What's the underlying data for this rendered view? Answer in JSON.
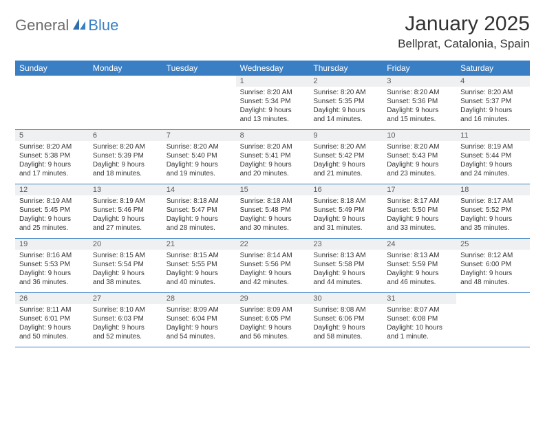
{
  "brand": {
    "part1": "General",
    "part2": "Blue"
  },
  "title": "January 2025",
  "location": "Bellprat, Catalonia, Spain",
  "colors": {
    "header_bg": "#3a7fc4",
    "header_text": "#ffffff",
    "daynum_bg": "#eef0f2",
    "rule": "#3a7fc4",
    "body_text": "#333333",
    "logo_gray": "#6b6b6b",
    "logo_blue": "#3a7fc4",
    "page_bg": "#ffffff"
  },
  "day_headers": [
    "Sunday",
    "Monday",
    "Tuesday",
    "Wednesday",
    "Thursday",
    "Friday",
    "Saturday"
  ],
  "weeks": [
    [
      null,
      null,
      null,
      {
        "n": "1",
        "sr": "Sunrise: 8:20 AM",
        "ss": "Sunset: 5:34 PM",
        "d1": "Daylight: 9 hours",
        "d2": "and 13 minutes."
      },
      {
        "n": "2",
        "sr": "Sunrise: 8:20 AM",
        "ss": "Sunset: 5:35 PM",
        "d1": "Daylight: 9 hours",
        "d2": "and 14 minutes."
      },
      {
        "n": "3",
        "sr": "Sunrise: 8:20 AM",
        "ss": "Sunset: 5:36 PM",
        "d1": "Daylight: 9 hours",
        "d2": "and 15 minutes."
      },
      {
        "n": "4",
        "sr": "Sunrise: 8:20 AM",
        "ss": "Sunset: 5:37 PM",
        "d1": "Daylight: 9 hours",
        "d2": "and 16 minutes."
      }
    ],
    [
      {
        "n": "5",
        "sr": "Sunrise: 8:20 AM",
        "ss": "Sunset: 5:38 PM",
        "d1": "Daylight: 9 hours",
        "d2": "and 17 minutes."
      },
      {
        "n": "6",
        "sr": "Sunrise: 8:20 AM",
        "ss": "Sunset: 5:39 PM",
        "d1": "Daylight: 9 hours",
        "d2": "and 18 minutes."
      },
      {
        "n": "7",
        "sr": "Sunrise: 8:20 AM",
        "ss": "Sunset: 5:40 PM",
        "d1": "Daylight: 9 hours",
        "d2": "and 19 minutes."
      },
      {
        "n": "8",
        "sr": "Sunrise: 8:20 AM",
        "ss": "Sunset: 5:41 PM",
        "d1": "Daylight: 9 hours",
        "d2": "and 20 minutes."
      },
      {
        "n": "9",
        "sr": "Sunrise: 8:20 AM",
        "ss": "Sunset: 5:42 PM",
        "d1": "Daylight: 9 hours",
        "d2": "and 21 minutes."
      },
      {
        "n": "10",
        "sr": "Sunrise: 8:20 AM",
        "ss": "Sunset: 5:43 PM",
        "d1": "Daylight: 9 hours",
        "d2": "and 23 minutes."
      },
      {
        "n": "11",
        "sr": "Sunrise: 8:19 AM",
        "ss": "Sunset: 5:44 PM",
        "d1": "Daylight: 9 hours",
        "d2": "and 24 minutes."
      }
    ],
    [
      {
        "n": "12",
        "sr": "Sunrise: 8:19 AM",
        "ss": "Sunset: 5:45 PM",
        "d1": "Daylight: 9 hours",
        "d2": "and 25 minutes."
      },
      {
        "n": "13",
        "sr": "Sunrise: 8:19 AM",
        "ss": "Sunset: 5:46 PM",
        "d1": "Daylight: 9 hours",
        "d2": "and 27 minutes."
      },
      {
        "n": "14",
        "sr": "Sunrise: 8:18 AM",
        "ss": "Sunset: 5:47 PM",
        "d1": "Daylight: 9 hours",
        "d2": "and 28 minutes."
      },
      {
        "n": "15",
        "sr": "Sunrise: 8:18 AM",
        "ss": "Sunset: 5:48 PM",
        "d1": "Daylight: 9 hours",
        "d2": "and 30 minutes."
      },
      {
        "n": "16",
        "sr": "Sunrise: 8:18 AM",
        "ss": "Sunset: 5:49 PM",
        "d1": "Daylight: 9 hours",
        "d2": "and 31 minutes."
      },
      {
        "n": "17",
        "sr": "Sunrise: 8:17 AM",
        "ss": "Sunset: 5:50 PM",
        "d1": "Daylight: 9 hours",
        "d2": "and 33 minutes."
      },
      {
        "n": "18",
        "sr": "Sunrise: 8:17 AM",
        "ss": "Sunset: 5:52 PM",
        "d1": "Daylight: 9 hours",
        "d2": "and 35 minutes."
      }
    ],
    [
      {
        "n": "19",
        "sr": "Sunrise: 8:16 AM",
        "ss": "Sunset: 5:53 PM",
        "d1": "Daylight: 9 hours",
        "d2": "and 36 minutes."
      },
      {
        "n": "20",
        "sr": "Sunrise: 8:15 AM",
        "ss": "Sunset: 5:54 PM",
        "d1": "Daylight: 9 hours",
        "d2": "and 38 minutes."
      },
      {
        "n": "21",
        "sr": "Sunrise: 8:15 AM",
        "ss": "Sunset: 5:55 PM",
        "d1": "Daylight: 9 hours",
        "d2": "and 40 minutes."
      },
      {
        "n": "22",
        "sr": "Sunrise: 8:14 AM",
        "ss": "Sunset: 5:56 PM",
        "d1": "Daylight: 9 hours",
        "d2": "and 42 minutes."
      },
      {
        "n": "23",
        "sr": "Sunrise: 8:13 AM",
        "ss": "Sunset: 5:58 PM",
        "d1": "Daylight: 9 hours",
        "d2": "and 44 minutes."
      },
      {
        "n": "24",
        "sr": "Sunrise: 8:13 AM",
        "ss": "Sunset: 5:59 PM",
        "d1": "Daylight: 9 hours",
        "d2": "and 46 minutes."
      },
      {
        "n": "25",
        "sr": "Sunrise: 8:12 AM",
        "ss": "Sunset: 6:00 PM",
        "d1": "Daylight: 9 hours",
        "d2": "and 48 minutes."
      }
    ],
    [
      {
        "n": "26",
        "sr": "Sunrise: 8:11 AM",
        "ss": "Sunset: 6:01 PM",
        "d1": "Daylight: 9 hours",
        "d2": "and 50 minutes."
      },
      {
        "n": "27",
        "sr": "Sunrise: 8:10 AM",
        "ss": "Sunset: 6:03 PM",
        "d1": "Daylight: 9 hours",
        "d2": "and 52 minutes."
      },
      {
        "n": "28",
        "sr": "Sunrise: 8:09 AM",
        "ss": "Sunset: 6:04 PM",
        "d1": "Daylight: 9 hours",
        "d2": "and 54 minutes."
      },
      {
        "n": "29",
        "sr": "Sunrise: 8:09 AM",
        "ss": "Sunset: 6:05 PM",
        "d1": "Daylight: 9 hours",
        "d2": "and 56 minutes."
      },
      {
        "n": "30",
        "sr": "Sunrise: 8:08 AM",
        "ss": "Sunset: 6:06 PM",
        "d1": "Daylight: 9 hours",
        "d2": "and 58 minutes."
      },
      {
        "n": "31",
        "sr": "Sunrise: 8:07 AM",
        "ss": "Sunset: 6:08 PM",
        "d1": "Daylight: 10 hours",
        "d2": "and 1 minute."
      },
      null
    ]
  ]
}
